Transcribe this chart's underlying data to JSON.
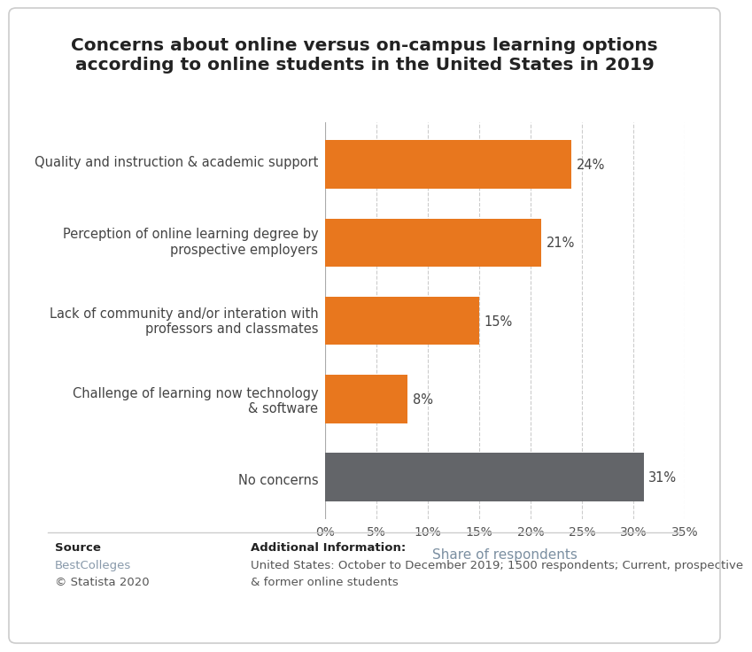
{
  "title": "Concerns about online versus on-campus learning options\naccording to online students in the United States in 2019",
  "categories": [
    "Quality and instruction & academic support",
    "Perception of online learning degree by\nprospective employers",
    "Lack of community and/or interation with\nprofessors and classmates",
    "Challenge of learning now technology\n& software",
    "No concerns"
  ],
  "values": [
    24,
    21,
    15,
    8,
    31
  ],
  "bar_colors": [
    "#E8771E",
    "#E8771E",
    "#E8771E",
    "#E8771E",
    "#636569"
  ],
  "xlabel": "Share of respondents",
  "xlim": [
    0,
    35
  ],
  "xticks": [
    0,
    5,
    10,
    15,
    20,
    25,
    30,
    35
  ],
  "xtick_labels": [
    "0%",
    "5%",
    "10%",
    "15%",
    "20%",
    "25%",
    "30%",
    "35%"
  ],
  "title_fontsize": 14.5,
  "label_fontsize": 10.5,
  "value_fontsize": 10.5,
  "xlabel_fontsize": 11,
  "xlabel_color": "#7B8FA1",
  "tick_color": "#555555",
  "background_color": "#FFFFFF",
  "source_bold": "Source",
  "source_link": "BestColleges",
  "source_copy": "© Statista 2020",
  "addl_bold": "Additional Information:",
  "addl_line1": "United States: October to December 2019; 1500 respondents; Current, prospective",
  "addl_line2": "& former online students"
}
